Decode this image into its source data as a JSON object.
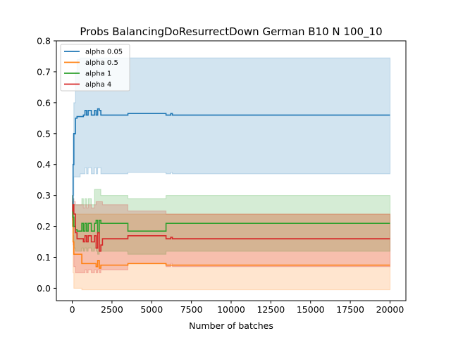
{
  "chart_data": {
    "type": "line",
    "title": "Probs BalancingDoResurrectDown German B10 N 100_10",
    "xlabel": "Number of batches",
    "ylabel": "",
    "xlim": [
      -1000,
      21000
    ],
    "ylim": [
      -0.04,
      0.8
    ],
    "xticks": [
      0,
      2500,
      5000,
      7500,
      10000,
      12500,
      15000,
      17500,
      20000
    ],
    "xtick_labels": [
      "0",
      "2500",
      "5000",
      "7500",
      "10000",
      "12500",
      "15000",
      "17500",
      "20000"
    ],
    "yticks": [
      0.0,
      0.1,
      0.2,
      0.3,
      0.4,
      0.5,
      0.6,
      0.7,
      0.8
    ],
    "ytick_labels": [
      "0.0",
      "0.1",
      "0.2",
      "0.3",
      "0.4",
      "0.5",
      "0.6",
      "0.7",
      "0.8"
    ],
    "grid": false,
    "legend_position": "top-left",
    "series": [
      {
        "name": "alpha 0.05",
        "color": "#1f77b4",
        "x": [
          0,
          50,
          100,
          200,
          300,
          500,
          700,
          800,
          900,
          1000,
          1200,
          1400,
          1500,
          1600,
          1700,
          1800,
          1900,
          3400,
          3500,
          5800,
          5900,
          6200,
          6300,
          20000
        ],
        "y": [
          0.25,
          0.4,
          0.5,
          0.55,
          0.555,
          0.555,
          0.56,
          0.575,
          0.56,
          0.575,
          0.56,
          0.575,
          0.56,
          0.58,
          0.575,
          0.56,
          0.56,
          0.56,
          0.565,
          0.565,
          0.56,
          0.565,
          0.56,
          0.56
        ],
        "upper": [
          0.3,
          0.5,
          0.6,
          0.7,
          0.74,
          0.745,
          0.745,
          0.745,
          0.745,
          0.745,
          0.745,
          0.745,
          0.745,
          0.745,
          0.745,
          0.745,
          0.745,
          0.745,
          0.745,
          0.745,
          0.745,
          0.745,
          0.745,
          0.745
        ],
        "lower": [
          0.2,
          0.3,
          0.36,
          0.36,
          0.36,
          0.37,
          0.37,
          0.39,
          0.37,
          0.39,
          0.37,
          0.39,
          0.37,
          0.39,
          0.39,
          0.37,
          0.37,
          0.37,
          0.375,
          0.375,
          0.37,
          0.375,
          0.37,
          0.37
        ]
      },
      {
        "name": "alpha 0.5",
        "color": "#ff7f0e",
        "x": [
          0,
          50,
          100,
          200,
          300,
          500,
          600,
          700,
          900,
          1000,
          1200,
          1400,
          1500,
          1600,
          1700,
          1800,
          1900,
          3400,
          3500,
          5800,
          5900,
          20000
        ],
        "y": [
          0.25,
          0.15,
          0.11,
          0.11,
          0.11,
          0.11,
          0.08,
          0.08,
          0.08,
          0.08,
          0.08,
          0.08,
          0.07,
          0.09,
          0.065,
          0.075,
          0.075,
          0.075,
          0.08,
          0.08,
          0.075,
          0.075
        ],
        "upper": [
          0.3,
          0.25,
          0.24,
          0.24,
          0.24,
          0.24,
          0.24,
          0.24,
          0.24,
          0.24,
          0.24,
          0.24,
          0.24,
          0.24,
          0.24,
          0.24,
          0.24,
          0.24,
          0.24,
          0.24,
          0.24,
          0.24
        ],
        "lower": [
          0.2,
          0.05,
          0.0,
          0.0,
          0.0,
          0.0,
          -0.005,
          -0.005,
          -0.005,
          -0.005,
          -0.005,
          -0.005,
          -0.005,
          -0.005,
          -0.005,
          -0.005,
          -0.005,
          -0.005,
          -0.005,
          -0.005,
          -0.005,
          -0.005
        ]
      },
      {
        "name": "alpha 1",
        "color": "#2ca02c",
        "x": [
          0,
          50,
          100,
          200,
          300,
          500,
          600,
          700,
          800,
          900,
          1000,
          1200,
          1400,
          1500,
          1600,
          1700,
          1800,
          1900,
          3400,
          3500,
          5800,
          5900,
          20000
        ],
        "y": [
          0.25,
          0.23,
          0.2,
          0.19,
          0.185,
          0.185,
          0.21,
          0.185,
          0.21,
          0.185,
          0.21,
          0.185,
          0.21,
          0.22,
          0.18,
          0.22,
          0.21,
          0.21,
          0.21,
          0.185,
          0.185,
          0.21,
          0.21
        ],
        "upper": [
          0.3,
          0.29,
          0.27,
          0.27,
          0.27,
          0.27,
          0.29,
          0.27,
          0.29,
          0.27,
          0.29,
          0.27,
          0.32,
          0.32,
          0.32,
          0.32,
          0.3,
          0.3,
          0.3,
          0.29,
          0.29,
          0.3,
          0.3
        ],
        "lower": [
          0.2,
          0.17,
          0.13,
          0.12,
          0.12,
          0.12,
          0.13,
          0.12,
          0.13,
          0.12,
          0.13,
          0.12,
          0.13,
          0.12,
          0.11,
          0.12,
          0.12,
          0.12,
          0.12,
          0.11,
          0.11,
          0.12,
          0.12
        ]
      },
      {
        "name": "alpha 4",
        "color": "#d62728",
        "x": [
          0,
          50,
          100,
          200,
          300,
          500,
          700,
          800,
          900,
          1000,
          1200,
          1400,
          1500,
          1600,
          1700,
          1800,
          1900,
          3400,
          3500,
          5800,
          5900,
          6200,
          6300,
          20000
        ],
        "y": [
          0.25,
          0.27,
          0.24,
          0.18,
          0.16,
          0.16,
          0.15,
          0.17,
          0.15,
          0.17,
          0.15,
          0.17,
          0.13,
          0.18,
          0.12,
          0.14,
          0.16,
          0.16,
          0.17,
          0.17,
          0.16,
          0.165,
          0.16,
          0.16
        ],
        "upper": [
          0.28,
          0.29,
          0.28,
          0.27,
          0.27,
          0.27,
          0.26,
          0.27,
          0.26,
          0.27,
          0.26,
          0.27,
          0.28,
          0.28,
          0.28,
          0.28,
          0.27,
          0.27,
          0.25,
          0.25,
          0.24,
          0.24,
          0.24,
          0.24
        ],
        "lower": [
          0.22,
          0.14,
          0.07,
          0.05,
          0.05,
          0.05,
          0.05,
          0.06,
          0.05,
          0.06,
          0.05,
          0.06,
          0.05,
          0.06,
          0.05,
          0.06,
          0.06,
          0.06,
          0.08,
          0.08,
          0.07,
          0.08,
          0.07,
          0.07
        ]
      }
    ]
  }
}
